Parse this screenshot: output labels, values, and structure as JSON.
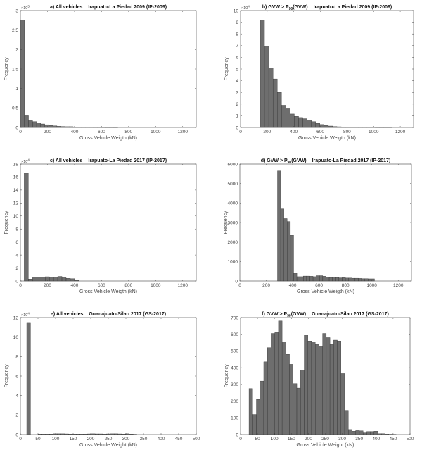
{
  "chart_data": [
    {
      "type": "bar",
      "title_prefix": "a) All vehicles",
      "title_main": "Irapuato-La Piedad 2009 (IP-2009)",
      "xlabel": "Gross Vehicle Weigth (kN)",
      "ylabel": "Frequency",
      "y_multiplier": "×10",
      "y_exponent": "5",
      "xlim": [
        0,
        1300
      ],
      "ylim": [
        0,
        3
      ],
      "xticks": [
        0,
        200,
        400,
        600,
        800,
        1000,
        1200
      ],
      "yticks": [
        0,
        0.5,
        1,
        1.5,
        2,
        2.5,
        3
      ],
      "bin_start": 0,
      "bin_width": 30,
      "values": [
        2.75,
        0.3,
        0.19,
        0.15,
        0.12,
        0.09,
        0.07,
        0.05,
        0.04,
        0.03,
        0.025,
        0.02,
        0.02,
        0.015,
        0.01,
        0.008,
        0.007,
        0.006,
        0.005,
        0.005,
        0.004,
        0.003,
        0.003,
        0.002
      ],
      "bar_color": "#6e6e6e"
    },
    {
      "type": "bar",
      "title_prefix": "b) GVW > P",
      "title_sub": "90",
      "title_suffix": "(GVW)",
      "title_main": "Irapuato-La Piedad 2009 (IP-2009)",
      "xlabel": "Gross Vehicle Weigth (kN)",
      "ylabel": "Frequency",
      "y_multiplier": "×10",
      "y_exponent": "4",
      "xlim": [
        0,
        1300
      ],
      "ylim": [
        0,
        10
      ],
      "xticks": [
        0,
        200,
        400,
        600,
        800,
        1000,
        1200
      ],
      "yticks": [
        0,
        1,
        2,
        3,
        4,
        5,
        6,
        7,
        8,
        9,
        10
      ],
      "bin_start": 148,
      "bin_width": 32,
      "values": [
        9.2,
        6.95,
        5.1,
        4.15,
        3.0,
        1.9,
        1.6,
        1.15,
        0.95,
        0.85,
        0.75,
        0.65,
        0.5,
        0.35,
        0.25,
        0.18,
        0.12,
        0.08,
        0.06,
        0.05,
        0.04,
        0.04,
        0.03,
        0.03,
        0.02,
        0.02,
        0.02,
        0.01,
        0.01,
        0.01,
        0.01
      ],
      "bar_color": "#6e6e6e"
    },
    {
      "type": "bar",
      "title_prefix": "c) All vehicles",
      "title_main": "Irapuato-La Piedad 2017 (IP-2017)",
      "xlabel": "Gross Vehicle Weigth (kN)",
      "ylabel": "Frequency",
      "y_multiplier": "×10",
      "y_exponent": "4",
      "xlim": [
        0,
        1300
      ],
      "ylim": [
        0,
        18
      ],
      "xticks": [
        0,
        200,
        400,
        600,
        800,
        1000,
        1200
      ],
      "yticks": [
        0,
        2,
        4,
        6,
        8,
        10,
        12,
        14,
        16,
        18
      ],
      "bin_start": 28,
      "bin_width": 31,
      "values": [
        16.6,
        0.3,
        0.5,
        0.6,
        0.5,
        0.65,
        0.6,
        0.6,
        0.7,
        0.5,
        0.4,
        0.35,
        0.1
      ],
      "bar_color": "#6e6e6e"
    },
    {
      "type": "bar",
      "title_prefix": "d) GVW > P",
      "title_sub": "90",
      "title_suffix": "(GVW)",
      "title_main": "Irapuato-La Piedad 2017 (IP-2017)",
      "xlabel": "Gross Vehicle Weigth (kN)",
      "ylabel": "Frequency",
      "xlim": [
        0,
        1300
      ],
      "ylim": [
        0,
        6000
      ],
      "xticks": [
        0,
        200,
        400,
        600,
        800,
        1000,
        1200
      ],
      "yticks": [
        0,
        1000,
        2000,
        3000,
        4000,
        5000,
        6000
      ],
      "bin_start": 285,
      "bin_width": 24.5,
      "values": [
        5650,
        3700,
        3200,
        3050,
        2350,
        400,
        220,
        220,
        250,
        250,
        240,
        220,
        270,
        270,
        240,
        200,
        180,
        190,
        170,
        160,
        170,
        150,
        150,
        140,
        140,
        130,
        120,
        120,
        110,
        110
      ],
      "bar_color": "#6e6e6e"
    },
    {
      "type": "bar",
      "title_prefix": "e) All vehicles",
      "title_main": "Guanajuato-Silao 2017 (GS-2017)",
      "xlabel": "Gross Vehicle Weight (kN)",
      "ylabel": "Frequency",
      "y_multiplier": "×10",
      "y_exponent": "4",
      "xlim": [
        0,
        500
      ],
      "ylim": [
        0,
        12
      ],
      "xticks": [
        0,
        50,
        100,
        150,
        200,
        250,
        300,
        350,
        400,
        450,
        500
      ],
      "yticks": [
        0,
        2,
        4,
        6,
        8,
        10,
        12
      ],
      "bin_start": 18,
      "bin_width": 10.8,
      "values": [
        11.5,
        0,
        0,
        0.05,
        0.05,
        0.05,
        0.06,
        0.08,
        0.08,
        0.08,
        0.07,
        0.06,
        0.05,
        0.05,
        0.05,
        0.06,
        0.07,
        0.08,
        0.07,
        0.07,
        0.06,
        0.07,
        0.08,
        0.08,
        0.07,
        0.06,
        0.08,
        0.06,
        0.03
      ],
      "bar_color": "#6e6e6e"
    },
    {
      "type": "bar",
      "title_prefix": "f) GVW > P",
      "title_sub": "90",
      "title_suffix": "(GVW)",
      "title_main": "Guanajuato-Silao 2017 (GS-2017)",
      "xlabel": "Gross Vehicle Weight (kN)",
      "ylabel": "Frequency",
      "xlim": [
        0,
        500
      ],
      "ylim": [
        0,
        700
      ],
      "xticks": [
        0,
        50,
        100,
        150,
        200,
        250,
        300,
        350,
        400,
        450,
        500
      ],
      "yticks": [
        0,
        100,
        200,
        300,
        400,
        500,
        600,
        700
      ],
      "bin_start": 25,
      "bin_width": 10.85,
      "values": [
        275,
        120,
        210,
        320,
        435,
        520,
        605,
        610,
        680,
        555,
        480,
        420,
        305,
        278,
        385,
        595,
        560,
        555,
        540,
        530,
        605,
        580,
        540,
        565,
        560,
        365,
        145,
        30,
        20,
        28,
        22,
        10,
        18,
        18,
        20,
        5,
        5,
        3,
        2,
        1
      ],
      "bar_color": "#6e6e6e"
    }
  ]
}
